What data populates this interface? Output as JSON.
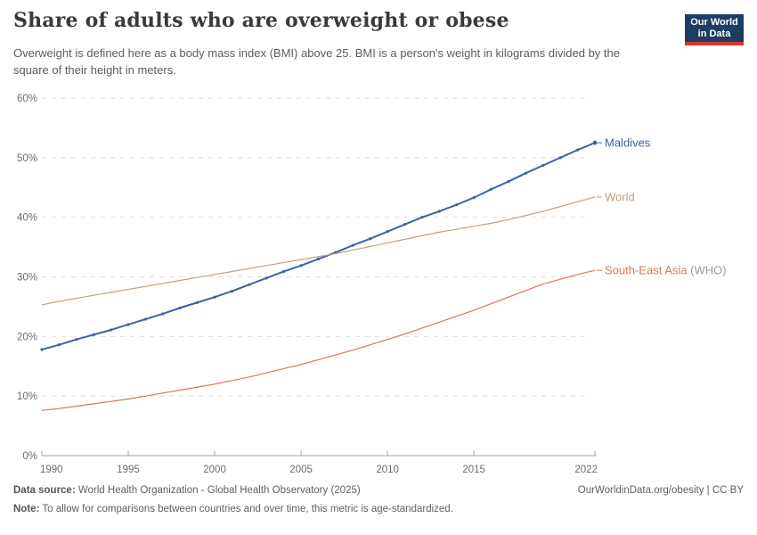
{
  "header": {
    "title": "Share of adults who are overweight or obese",
    "subtitle": "Overweight is defined here as a body mass index (BMI) above 25. BMI is a person's weight in kilograms divided by the square of their height in meters.",
    "logo": {
      "line1": "Our World",
      "line2": "in Data",
      "bg_color": "#1d3d63",
      "accent_color": "#d5362a"
    }
  },
  "chart_data": {
    "type": "line",
    "title": "Share of adults who are overweight or obese",
    "xlabel": "",
    "ylabel": "",
    "xlim": [
      1990,
      2022
    ],
    "ylim": [
      0,
      60
    ],
    "grid": "horizontal-dashed",
    "legend_position": "end-of-line-labels",
    "x_ticks": [
      1990,
      1995,
      2000,
      2005,
      2010,
      2015,
      2022
    ],
    "y_ticks": [
      0,
      10,
      20,
      30,
      40,
      50,
      60
    ],
    "y_tick_suffix": "%",
    "x": [
      1990,
      1991,
      1992,
      1993,
      1994,
      1995,
      1996,
      1997,
      1998,
      1999,
      2000,
      2001,
      2002,
      2003,
      2004,
      2005,
      2006,
      2007,
      2008,
      2009,
      2010,
      2011,
      2012,
      2013,
      2014,
      2015,
      2016,
      2017,
      2018,
      2019,
      2020,
      2021,
      2022
    ],
    "series": [
      {
        "name": "Maldives",
        "suffix": "",
        "color": "#3d62a7",
        "line_width": 2,
        "markers": true,
        "end_dot": true,
        "values": [
          17.8,
          18.6,
          19.5,
          20.3,
          21.1,
          22.0,
          22.9,
          23.8,
          24.8,
          25.7,
          26.6,
          27.6,
          28.7,
          29.8,
          30.9,
          31.9,
          33.0,
          34.1,
          35.3,
          36.4,
          37.6,
          38.8,
          40.0,
          41.0,
          42.1,
          43.3,
          44.7,
          46.0,
          47.4,
          48.7,
          50.0,
          51.3,
          52.5
        ]
      },
      {
        "name": "World",
        "suffix": "",
        "color": "#c3a07c",
        "line_width": 1.2,
        "markers": false,
        "end_dot": false,
        "values": [
          25.3,
          25.9,
          26.4,
          26.9,
          27.4,
          27.9,
          28.4,
          28.9,
          29.4,
          29.9,
          30.4,
          30.9,
          31.4,
          31.9,
          32.4,
          32.9,
          33.4,
          33.9,
          34.5,
          35.1,
          35.7,
          36.3,
          36.9,
          37.5,
          38.0,
          38.5,
          39.0,
          39.6,
          40.3,
          41.0,
          41.8,
          42.6,
          43.4
        ]
      },
      {
        "name": "South-East Asia",
        "suffix": " (WHO)",
        "color": "#d8775a",
        "line_width": 1.2,
        "markers": false,
        "end_dot": false,
        "values": [
          7.6,
          7.9,
          8.3,
          8.7,
          9.1,
          9.5,
          10.0,
          10.5,
          11.0,
          11.5,
          12.0,
          12.6,
          13.2,
          13.9,
          14.6,
          15.3,
          16.1,
          16.9,
          17.7,
          18.6,
          19.5,
          20.4,
          21.4,
          22.4,
          23.4,
          24.4,
          25.5,
          26.6,
          27.7,
          28.8,
          29.6,
          30.4,
          31.1
        ]
      }
    ],
    "suffix_color": "#9a9a9a"
  },
  "footer": {
    "data_source_label": "Data source:",
    "data_source_text": "World Health Organization - Global Health Observatory (2025)",
    "link": "OurWorldinData.org/obesity | CC BY",
    "note_label": "Note:",
    "note_text": "To allow for comparisons between countries and over time, this metric is age-standardized."
  }
}
